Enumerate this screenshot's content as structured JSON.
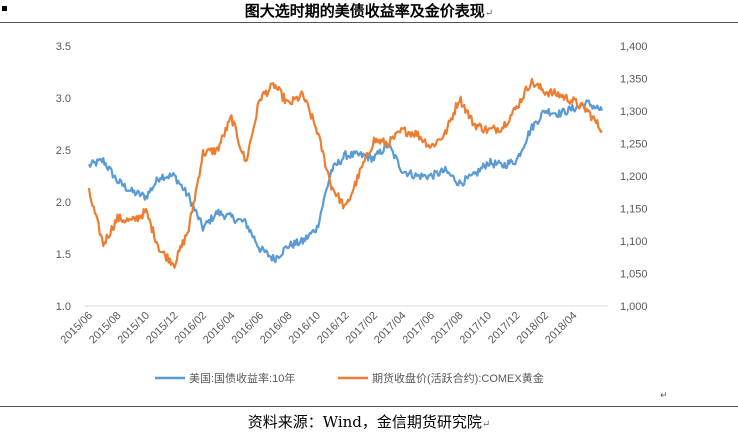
{
  "page": {
    "title": "图大选时期的美债收益率及金价表现",
    "source": "资料来源：Wind，金信期货研究院"
  },
  "colors": {
    "series1": "#5B9BD5",
    "series2": "#ED7D31",
    "axis": "#D9D9D9",
    "text": "#595959"
  },
  "icons": {
    "return_mark": "↵",
    "bullet_mark": "square-marker"
  },
  "chart_data": {
    "type": "line",
    "title": "",
    "legend_position": "bottom",
    "grid": false,
    "xlabels": [
      "2015/06",
      "2015/08",
      "2015/10",
      "2015/12",
      "2016/02",
      "2016/04",
      "2016/06",
      "2016/08",
      "2016/10",
      "2016/12",
      "2017/02",
      "2017/04",
      "2017/06",
      "2017/08",
      "2017/10",
      "2017/12",
      "2018/02",
      "2018/04"
    ],
    "x": [
      "2015/06",
      "2015/07",
      "2015/08",
      "2015/09",
      "2015/10",
      "2015/11",
      "2015/12",
      "2016/01",
      "2016/02",
      "2016/03",
      "2016/04",
      "2016/05",
      "2016/06",
      "2016/07",
      "2016/08",
      "2016/09",
      "2016/10",
      "2016/11",
      "2016/12",
      "2017/01",
      "2017/02",
      "2017/03",
      "2017/04",
      "2017/05",
      "2017/06",
      "2017/07",
      "2017/08",
      "2017/09",
      "2017/10",
      "2017/11",
      "2017/12",
      "2018/01",
      "2018/02",
      "2018/03",
      "2018/04",
      "2018/05",
      "2018/06"
    ],
    "y_left": {
      "ylim": [
        1.0,
        3.5
      ],
      "ticks": [
        "1.0",
        "1.5",
        "2.0",
        "2.5",
        "3.0",
        "3.5"
      ]
    },
    "y_right": {
      "ylim": [
        1000,
        1400
      ],
      "ticks": [
        "1,000",
        "1,050",
        "1,100",
        "1,150",
        "1,200",
        "1,250",
        "1,300",
        "1,350",
        "1,400"
      ]
    },
    "series": [
      {
        "name": "美国:国债收益率:10年",
        "axis": "left",
        "values": [
          2.35,
          2.4,
          2.2,
          2.1,
          2.05,
          2.25,
          2.25,
          2.05,
          1.75,
          1.9,
          1.85,
          1.8,
          1.55,
          1.45,
          1.58,
          1.62,
          1.75,
          2.3,
          2.45,
          2.45,
          2.42,
          2.55,
          2.3,
          2.25,
          2.25,
          2.3,
          2.18,
          2.25,
          2.38,
          2.35,
          2.4,
          2.7,
          2.88,
          2.85,
          2.9,
          2.95,
          2.88
        ]
      },
      {
        "name": "期货收盘价(活跃合约):COMEX黄金",
        "axis": "right",
        "values": [
          1175,
          1095,
          1135,
          1130,
          1145,
          1085,
          1065,
          1118,
          1235,
          1240,
          1290,
          1220,
          1320,
          1340,
          1310,
          1325,
          1270,
          1185,
          1150,
          1205,
          1255,
          1250,
          1270,
          1265,
          1245,
          1265,
          1320,
          1280,
          1270,
          1275,
          1305,
          1345,
          1330,
          1325,
          1315,
          1300,
          1270
        ]
      }
    ]
  }
}
